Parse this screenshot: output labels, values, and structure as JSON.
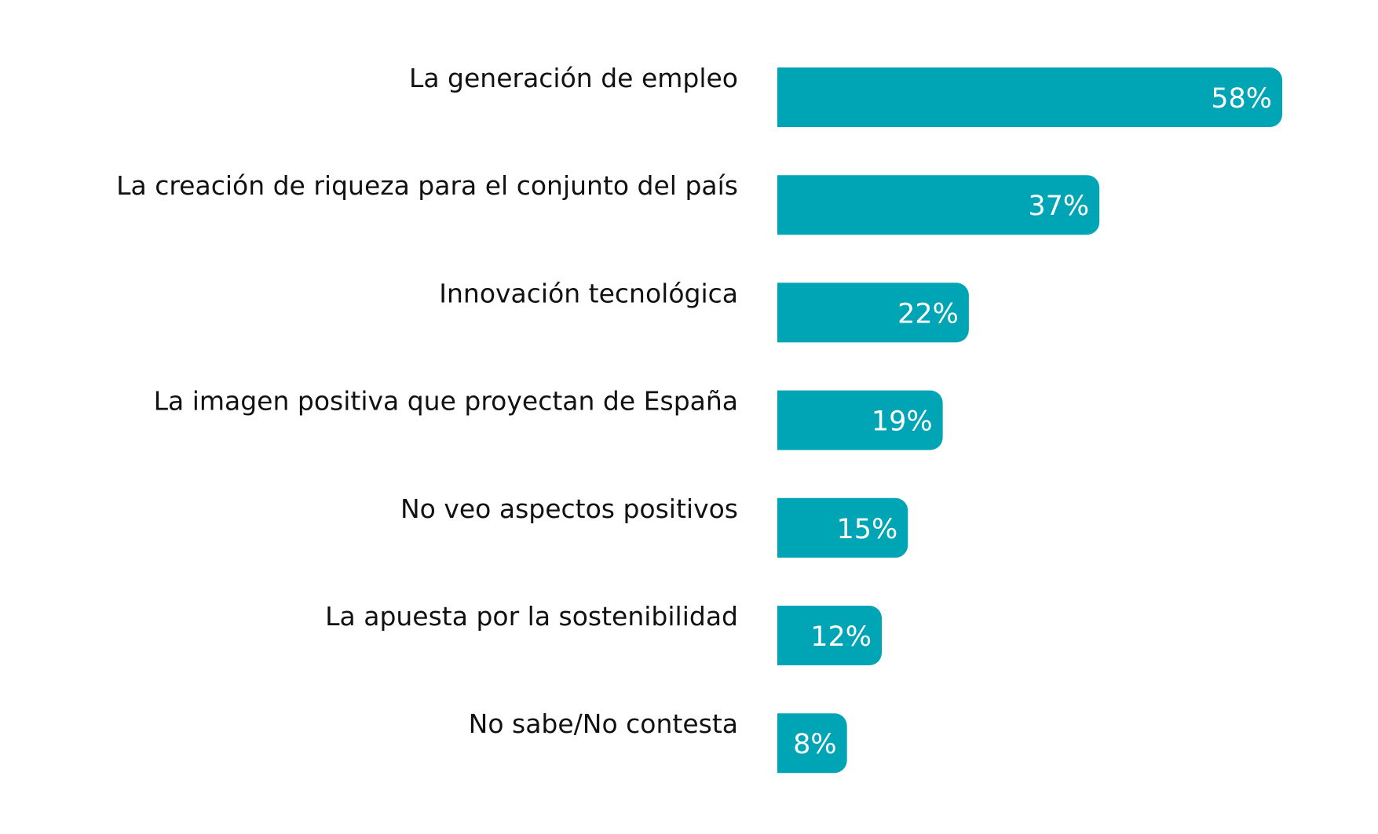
{
  "chart_data": {
    "type": "bar",
    "orientation": "horizontal",
    "categories": [
      "La generación de empleo",
      "La creación de riqueza para el conjunto del país",
      "Innovación tecnológica",
      "La imagen positiva que proyectan de España",
      "No veo aspectos positivos",
      "La apuesta por la sostenibilidad",
      "No sabe/No contesta"
    ],
    "values": [
      58,
      37,
      22,
      19,
      15,
      12,
      8
    ],
    "value_labels": [
      "58%",
      "37%",
      "22%",
      "19%",
      "15%",
      "12%",
      "8%"
    ],
    "unit": "%",
    "xlim": [
      0,
      58
    ],
    "grid": false,
    "legend": "none",
    "bar_color": "#00a5b5",
    "label_color": "#111111",
    "value_label_color": "#ffffff"
  }
}
